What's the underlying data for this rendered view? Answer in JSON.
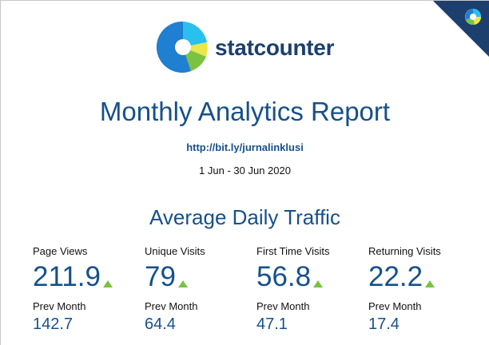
{
  "brand": {
    "name": "statcounter",
    "colors": {
      "dark_blue": "#16508b",
      "mid_blue": "#1f7fd0",
      "cyan": "#29c0f0",
      "green": "#7cc242",
      "yellow": "#e8e84a",
      "corner_navy": "#1d3f6e"
    }
  },
  "report": {
    "title": "Monthly Analytics Report",
    "link": "http://bit.ly/jurnalinklusi",
    "date_range": "1 Jun - 30 Jun 2020"
  },
  "traffic": {
    "title": "Average Daily Traffic",
    "stats": [
      {
        "label": "Page Views",
        "value": "211.9",
        "trend": "up",
        "prev_label": "Prev Month",
        "prev_value": "142.7"
      },
      {
        "label": "Unique Visits",
        "value": "79",
        "trend": "up",
        "prev_label": "Prev Month",
        "prev_value": "64.4"
      },
      {
        "label": "First Time Visits",
        "value": "56.8",
        "trend": "up",
        "prev_label": "Prev Month",
        "prev_value": "47.1"
      },
      {
        "label": "Returning Visits",
        "value": "22.2",
        "trend": "up",
        "prev_label": "Prev Month",
        "prev_value": "17.4"
      }
    ]
  },
  "icons": {
    "logo": "statcounter-logo-icon",
    "corner": "statcounter-corner-badge-icon",
    "trend": "trend-up-icon"
  }
}
